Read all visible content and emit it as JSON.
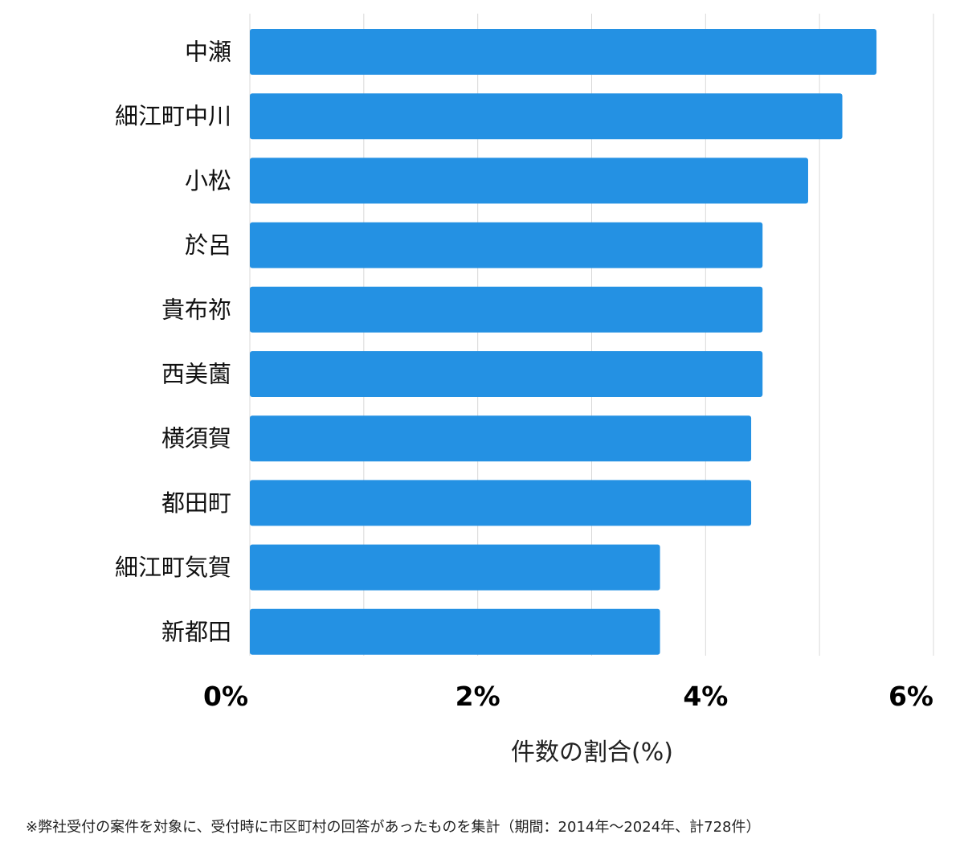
{
  "chart_data": {
    "type": "bar",
    "orientation": "horizontal",
    "categories": [
      "中瀬",
      "細江町中川",
      "小松",
      "於呂",
      "貴布祢",
      "西美薗",
      "横須賀",
      "都田町",
      "細江町気賀",
      "新都田"
    ],
    "values": [
      5.5,
      5.2,
      4.9,
      4.5,
      4.5,
      4.5,
      4.4,
      4.4,
      3.6,
      3.6
    ],
    "xlim": [
      0,
      6
    ],
    "xticks": [
      0,
      2,
      4,
      6
    ],
    "xtick_labels": [
      "0%",
      "2%",
      "4%",
      "6%"
    ],
    "xlabel": "件数の割合(%)",
    "ylabel": "",
    "grid": true,
    "bar_color": "#2491e3",
    "grid_color": "#d9d9d9"
  },
  "footnote": "※弊社受付の案件を対象に、受付時に市区町村の回答があったものを集計（期間：2014年～2024年、計728件）"
}
